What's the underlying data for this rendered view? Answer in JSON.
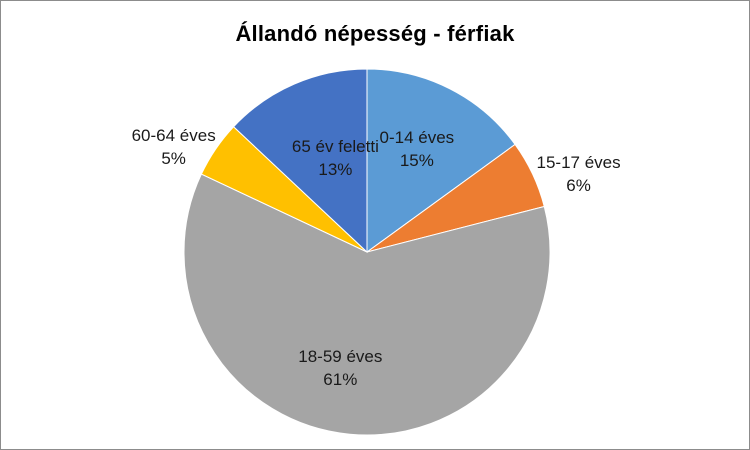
{
  "chart_data": {
    "type": "pie",
    "title": "Állandó népesség - férfiak",
    "legend": "none",
    "start_angle_deg": 0,
    "slices": [
      {
        "label": "0-14 éves",
        "value": 15,
        "value_label": "15%",
        "color": "#5B9BD5"
      },
      {
        "label": "15-17 éves",
        "value": 6,
        "value_label": "6%",
        "color": "#ED7D31"
      },
      {
        "label": "18-59 éves",
        "value": 61,
        "value_label": "61%",
        "color": "#A5A5A5"
      },
      {
        "label": "60-64 éves",
        "value": 5,
        "value_label": "5%",
        "color": "#FFC000"
      },
      {
        "label": "65 év feletti",
        "value": 13,
        "value_label": "13%",
        "color": "#4472C4"
      }
    ]
  }
}
